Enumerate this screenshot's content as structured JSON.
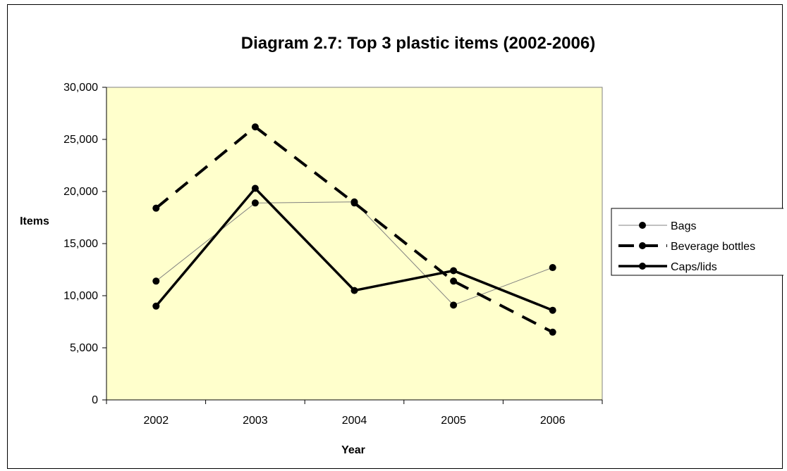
{
  "chart_data": {
    "type": "line",
    "title": "Diagram 2.7: Top 3 plastic items (2002-2006)",
    "xlabel": "Year",
    "ylabel": "Items",
    "categories": [
      "2002",
      "2003",
      "2004",
      "2005",
      "2006"
    ],
    "ylim": [
      0,
      30000
    ],
    "yticks": [
      "0",
      "5,000",
      "10,000",
      "15,000",
      "20,000",
      "25,000",
      "30,000"
    ],
    "grid": false,
    "plot_background": "#FFFFCC",
    "legend_position": "right",
    "series": [
      {
        "name": "Bags",
        "values": [
          11400,
          18900,
          19000,
          9100,
          12700
        ],
        "style": "thin"
      },
      {
        "name": "Beverage bottles",
        "values": [
          18400,
          26200,
          18900,
          11400,
          6500
        ],
        "style": "dashed"
      },
      {
        "name": "Caps/lids",
        "values": [
          9000,
          20300,
          10500,
          12400,
          8600
        ],
        "style": "thick"
      }
    ]
  }
}
